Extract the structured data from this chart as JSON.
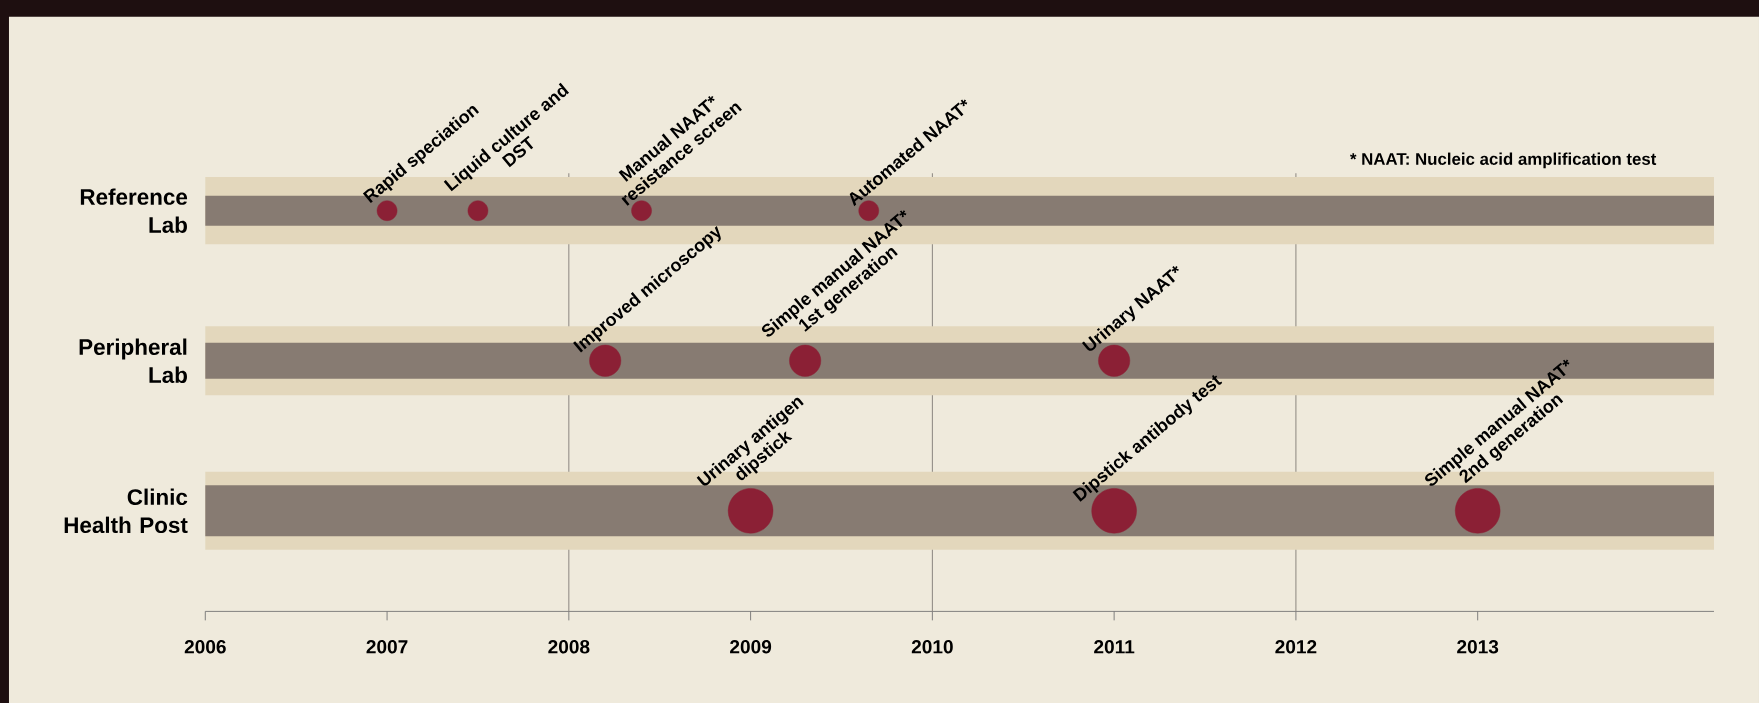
{
  "chart_data": {
    "type": "bubble",
    "orientation": "horizontal",
    "categories": [
      "Reference Lab",
      "Peripheral Lab",
      "Clinic Health Post"
    ],
    "series": [
      {
        "color": "#8b2035",
        "values": [
          2007,
          2008.2,
          2009
        ],
        "sizes": [
          0.2,
          0.49,
          1
        ]
      },
      {
        "color": "#8b2035",
        "values": [
          2007.5,
          2009.3,
          2011
        ],
        "sizes": [
          0.2,
          0.49,
          1
        ]
      },
      {
        "color": "#8b2035",
        "values": [
          2008.4,
          2011,
          2013
        ],
        "sizes": [
          0.2,
          0.49,
          1
        ]
      },
      {
        "color": "#8b2035",
        "values": [
          2009.65,
          null,
          null
        ],
        "sizes": [
          0.2,
          null,
          null
        ]
      }
    ],
    "xlim": [
      2006,
      2014.3
    ],
    "xticks": [
      2006,
      2007,
      2008,
      2009,
      2010,
      2011,
      2012,
      2013
    ],
    "ref_lines": [
      {
        "axis": "x",
        "value": 2008,
        "color": "#8c8680"
      },
      {
        "axis": "x",
        "value": 2010,
        "color": "#8c8680"
      },
      {
        "axis": "x",
        "value": 2012,
        "color": "#8c8680"
      }
    ],
    "bands": [
      {
        "axis": "y",
        "from": "Reference Lab",
        "to": "Reference Lab",
        "color": "#e3d7bc"
      },
      {
        "axis": "y",
        "from": "Reference Lab",
        "to": "Reference Lab",
        "color": "#877b72"
      },
      {
        "axis": "y",
        "from": "Peripheral Lab",
        "to": "Peripheral Lab",
        "color": "#e3d7bc"
      },
      {
        "axis": "y",
        "from": "Peripheral Lab",
        "to": "Peripheral Lab",
        "color": "#877b72"
      },
      {
        "axis": "y",
        "from": "Clinic Health Post",
        "to": "Clinic Health Post",
        "color": "#e3d7bc"
      },
      {
        "axis": "y",
        "from": "Clinic Health Post",
        "to": "Clinic Health Post",
        "color": "#877b72"
      }
    ],
    "annotations": [
      {
        "text": "Rapid speciation",
        "x": 2007,
        "y": "Reference Lab"
      },
      {
        "text": "Liquid culture and DST",
        "x": 2007.5,
        "y": "Reference Lab"
      },
      {
        "text": "Manual NAAT* resistance screen",
        "x": 2008.4,
        "y": "Reference Lab"
      },
      {
        "text": "Automated NAAT*",
        "x": 2009.65,
        "y": "Reference Lab"
      },
      {
        "text": "Improved microscopy",
        "x": 2008.2,
        "y": "Peripheral Lab"
      },
      {
        "text": "Simple manual NAAT* 1st generation",
        "x": 2009.3,
        "y": "Peripheral Lab"
      },
      {
        "text": "Urinary NAAT*",
        "x": 2011,
        "y": "Peripheral Lab"
      },
      {
        "text": "Urinary antigen dipstick",
        "x": 2009,
        "y": "Clinic Health Post"
      },
      {
        "text": "Dipstick antibody test",
        "x": 2011,
        "y": "Clinic Health Post"
      },
      {
        "text": "Simple manual NAAT* 2nd generation",
        "x": 2013,
        "y": "Clinic Health Post"
      },
      "* NAAT: Nucleic acid amplification test"
    ]
  }
}
